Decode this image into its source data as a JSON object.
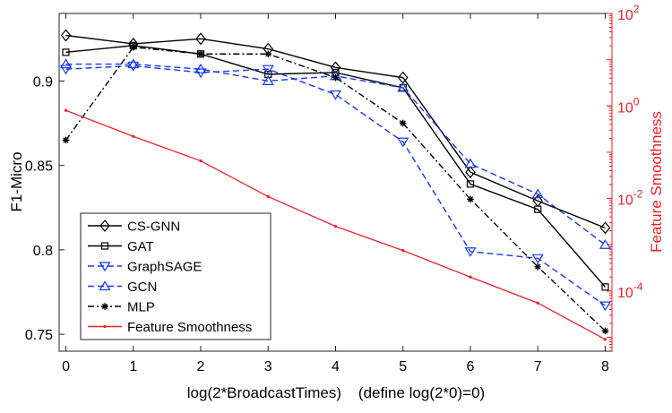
{
  "chart_data": {
    "type": "line",
    "title": "",
    "xlabel": "log(2*BroadcastTimes)    (define log(2*0)=0)",
    "ylabel": "F1-Micro",
    "ylabel_right": "Feature Smoothness",
    "x": [
      0,
      1,
      2,
      3,
      4,
      5,
      6,
      7,
      8
    ],
    "x_ticks": [
      "0",
      "1",
      "2",
      "3",
      "4",
      "5",
      "6",
      "7",
      "8"
    ],
    "xlim": [
      -0.1,
      8.1
    ],
    "ylim": [
      0.74,
      0.94
    ],
    "y_ticks": [
      "0.75",
      "0.8",
      "0.85",
      "0.9"
    ],
    "y_right_scale": "log",
    "y_right_lim": [
      5e-06,
      100
    ],
    "y_right_ticks": [
      {
        "base": "10",
        "exp": "-4",
        "value": 0.0001
      },
      {
        "base": "10",
        "exp": "-2",
        "value": 0.01
      },
      {
        "base": "10",
        "exp": "0",
        "value": 1
      },
      {
        "base": "10",
        "exp": "2",
        "value": 100
      }
    ],
    "grid": false,
    "legend_position": "bottom-left",
    "series": [
      {
        "name": "CS-GNN",
        "axis": "left",
        "color": "#000000",
        "dash": "solid",
        "marker": "diamond",
        "values": [
          0.927,
          0.922,
          0.925,
          0.919,
          0.908,
          0.902,
          0.846,
          0.829,
          0.813
        ]
      },
      {
        "name": "GAT",
        "axis": "left",
        "color": "#000000",
        "dash": "solid",
        "marker": "square",
        "values": [
          0.917,
          0.921,
          0.916,
          0.904,
          0.905,
          0.896,
          0.839,
          0.824,
          0.778
        ]
      },
      {
        "name": "GraphSAGE",
        "axis": "left",
        "color": "#1a3ae6",
        "dash": "dashed",
        "marker": "triangle-down",
        "values": [
          0.907,
          0.909,
          0.905,
          0.907,
          0.892,
          0.864,
          0.799,
          0.795,
          0.767
        ]
      },
      {
        "name": "GCN",
        "axis": "left",
        "color": "#1a3ae6",
        "dash": "dashed",
        "marker": "triangle-up",
        "values": [
          0.91,
          0.91,
          0.907,
          0.9,
          0.903,
          0.896,
          0.851,
          0.833,
          0.803
        ]
      },
      {
        "name": "MLP",
        "axis": "left",
        "color": "#000000",
        "dash": "dashdot",
        "marker": "asterisk",
        "values": [
          0.865,
          0.92,
          0.916,
          0.916,
          0.902,
          0.875,
          0.83,
          0.79,
          0.752
        ]
      },
      {
        "name": "Feature Smoothness",
        "axis": "right",
        "color": "#e8202a",
        "dash": "solid",
        "marker": "dot",
        "values": [
          0.8,
          0.22,
          0.065,
          0.011,
          0.0025,
          0.00075,
          0.0002,
          5.5e-05,
          9e-06
        ]
      }
    ]
  }
}
